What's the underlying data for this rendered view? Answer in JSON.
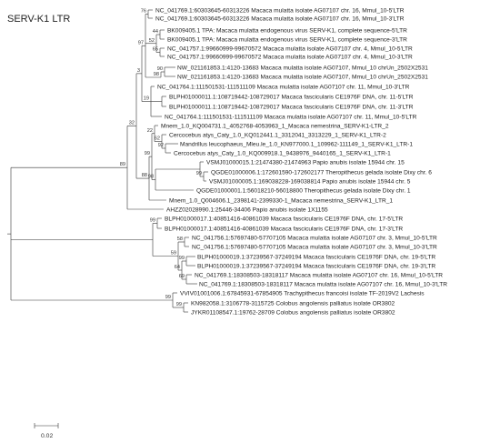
{
  "title": "SERV-K1 LTR",
  "scale_label": "0.02",
  "leaves": [
    "NC_041769.1:60303645-60313226 Macaca mulatta isolate AG07107 chr. 16, Mmul_10-5'LTR",
    "NC_041769.1:60303645-60313226 Macaca mulatta isolate AG07107 chr. 16, Mmul_10-3'LTR",
    "BK009405.1 TPA: Macaca mulatta endogenous virus SERV-K1, complete sequence-5'LTR",
    "BK009405.1 TPA: Macaca mulatta endogenous virus SERV-K1, complete sequence-3'LTR",
    "NC_041757.1:99660999-99670572 Macaca mulatta isolate AG07107 chr. 4, Mmul_10-5'LTR",
    "NC_041757.1:99660999-99670572 Macaca mulatta isolate AG07107 chr. 4, Mmul_10-3'LTR",
    "NW_021161853.1:4120-13683 Macaca mulatta isolate AG07107, Mmul_10 chrUn_2502X2531",
    "NW_021161853.1:4120-13683 Macaca mulatta isolate AG07107, Mmul_10 chrUn_2502X2531",
    "NC_041764.1:111501531-111511109 Macaca mulatta isolate AG07107 chr. 11, Mmul_10-3'LTR",
    "BLPH01000011.1:108719442-108729017 Macaca fascicularis CE1976F DNA, chr. 11-5'LTR",
    "BLPH01000011.1:108719442-108729017 Macaca fascicularis CE1976F DNA, chr. 11-3'LTR",
    "NC_041764.1:111501531-111511109 Macaca mulatta isolate AG07107 chr. 11, Mmul_10-5'LTR",
    "Mnem_1.0_KQ004731.1_4052768-4053963_1_Macaca nemestrina_SERV-K1-LTR_2",
    "Cercocebus atys_Caty_1.0_KQ012441.1_3312041_3313229_1_SERV-K1_LTR-2",
    "Mandrillus leucophaeus_Mleu.le_1.0_KN977000.1_109962-111149_1_SERV-K1_LTR-1",
    "Cercocebus atys_Caty_1.0_KQ009918.1_9438976_9440165_1_SERV-K1_LTR-1",
    "VSMJ01000015.1:21474380-21474963 Papio anubis isolate 15944 chr. 15",
    "QGDE01000006.1:172601590-172602177 Theropithecus gelada isolate Dixy chr. 6",
    "VSMJ01000005.1:169038228-169038814 Papio anubis isolate 15944 chr. 5",
    "QGDE01000001.1:56018210-56018800 Theropithecus gelada isolate Dixy chr. 1",
    "Mnem_1.0_Q004606.1_2398141-2399330-1_Macaca nemestrina_SERV-K1_LTR_1",
    "AHZZ02028990.1:25446-34406 Papio anubis isolate 1X1155",
    "BLPH01000017.1:40851416-40861039 Macaca fascicularis CE1976F DNA, chr. 17-5'LTR",
    "BLPH01000017.1:40851416-40861039 Macaca fascicularis CE1976F DNA, chr. 17-3'LTR",
    "NC_041756.1:57697480-57707105 Macaca mulatta isolate AG07107 chr. 3, Mmul_10-5'LTR",
    "NC_041756.1:57697480-57707105 Macaca mulatta isolate AG07107 chr. 3, Mmul_10-3'LTR",
    "BLPH01000019.1:37239567-37249194 Macaca fascicularis CE1976F DNA, chr. 19-5'LTR",
    "BLPH01000019.1:37239567-37249194 Macaca fascicularis CE1976F DNA, chr. 19-3'LTR",
    "NC_041769.1:18308503-18318117 Macaca mulatta isolate AG07107 chr. 16, Mmul_10-5'LTR",
    "NC_041769.1:18308503-18318117 Macaca mulatta isolate AG07107 chr. 16, Mmul_10-3'LTR",
    "VVIV01001006.1:67845931-67854905 Trachypithecus francoisi isolate TF-2019V2 Lachesis",
    "KN982058.1:3106778-3115725 Colobus angolensis palliatus isolate OR3802",
    "JYKR01108547.1:19762-28709 Colobus angolensis palliatus isolate OR3802"
  ],
  "bootstraps": [
    "76",
    "44",
    "52",
    "65",
    "98",
    "90",
    "97",
    "3",
    "19",
    "22",
    "62",
    "92",
    "99",
    "32",
    "98",
    "99",
    "88",
    "89",
    "99",
    "58",
    "99",
    "59",
    "64",
    "91",
    "69",
    "99",
    "99",
    "99"
  ]
}
